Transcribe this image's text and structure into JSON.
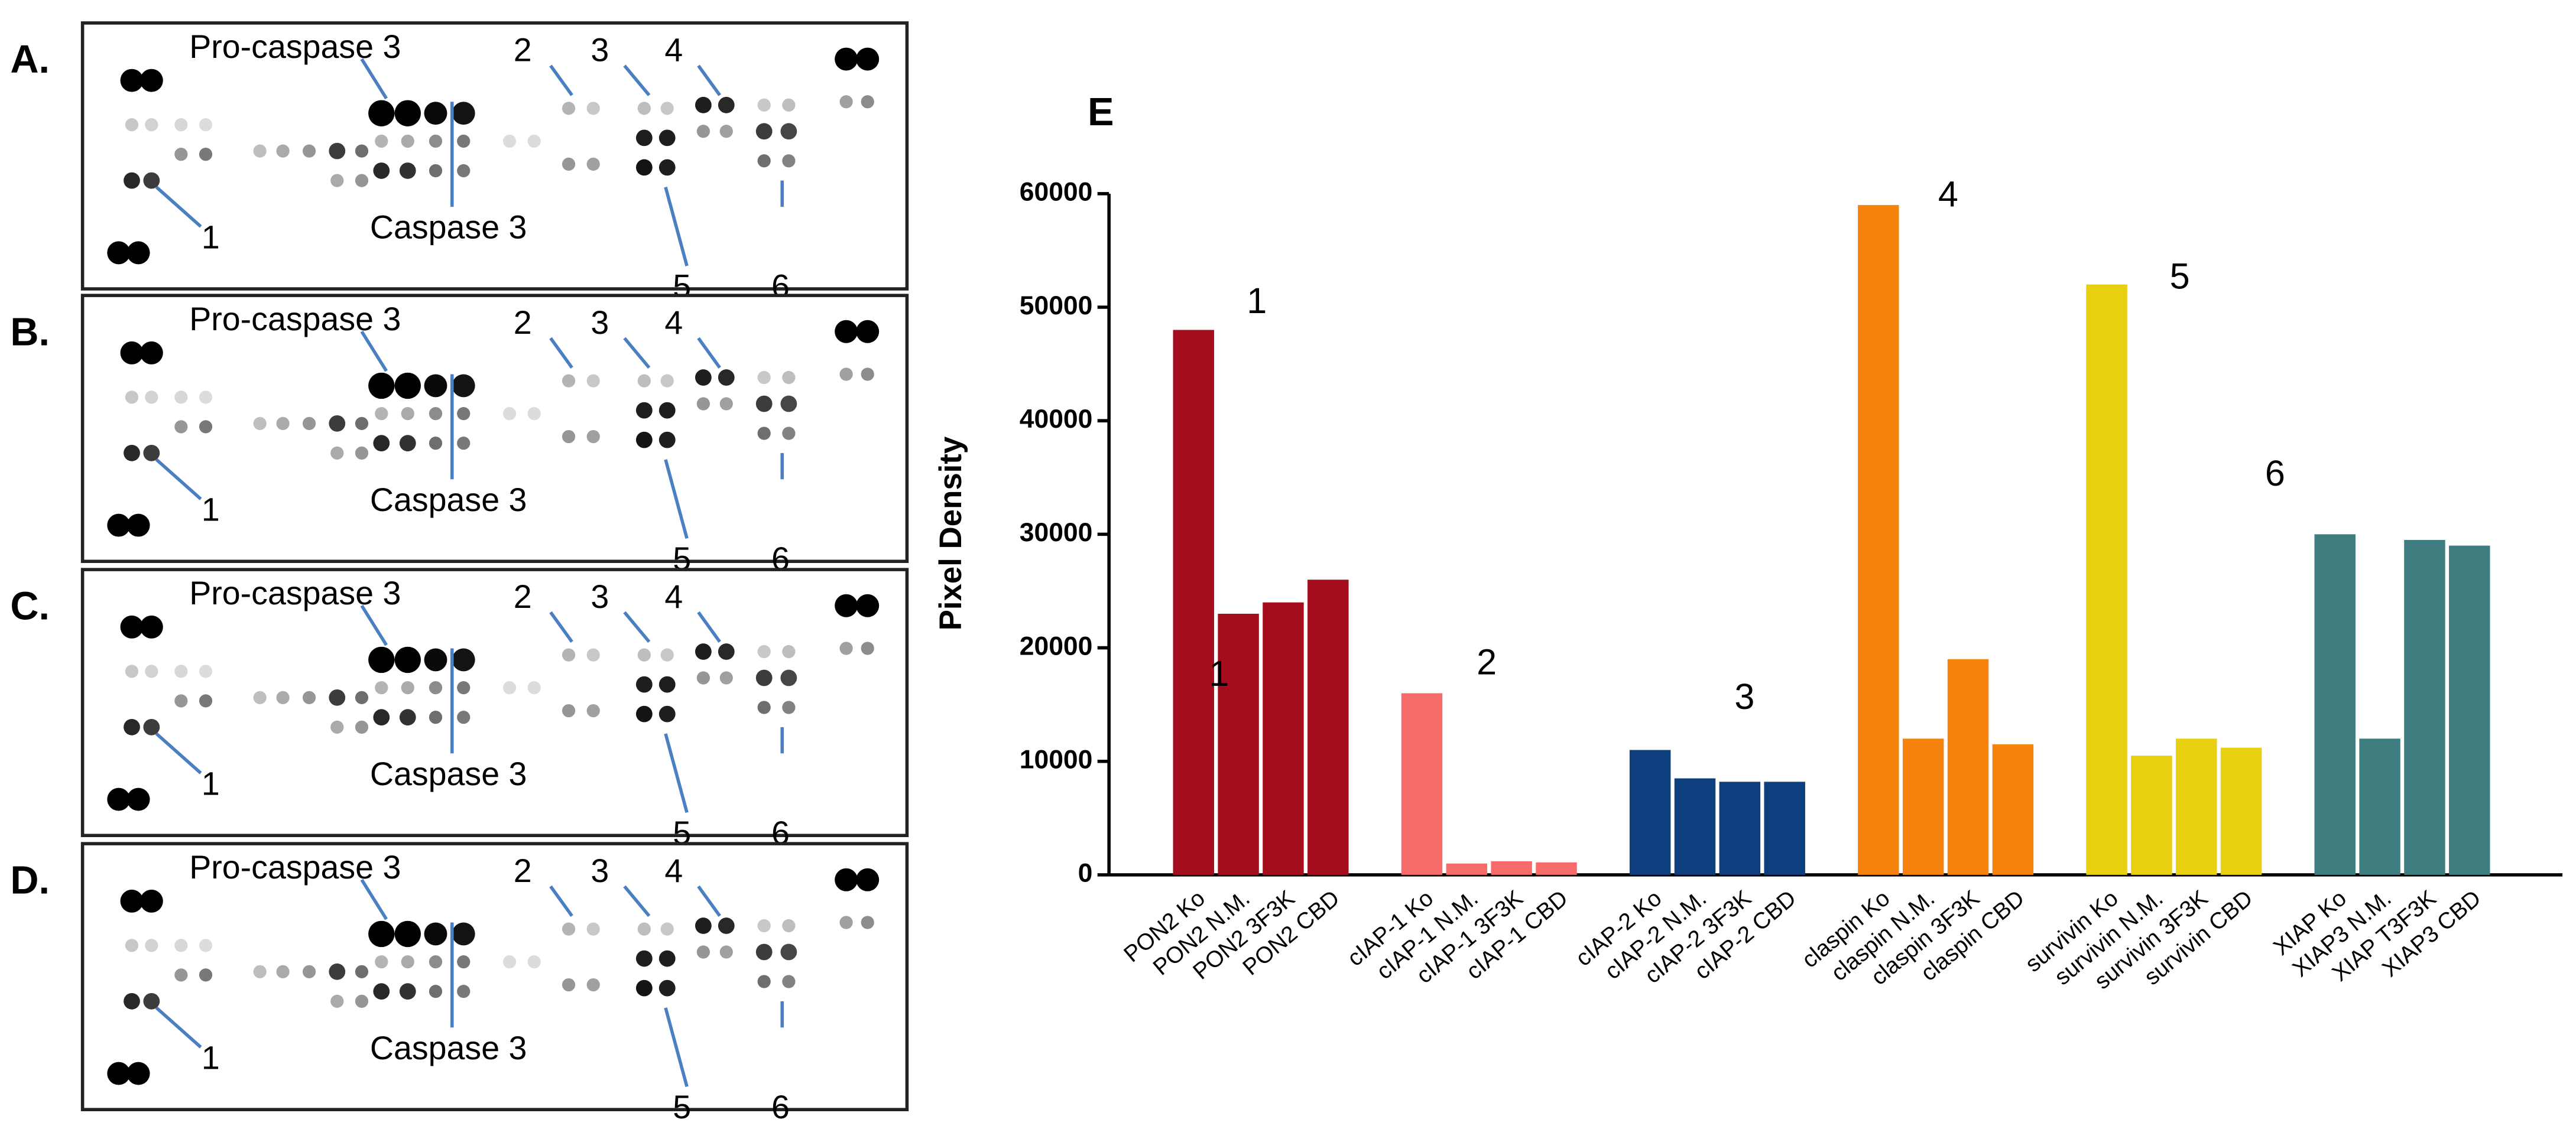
{
  "panels": [
    {
      "label": "A.",
      "annotations": [
        "Pro-caspase 3",
        "2",
        "3",
        "4",
        "1",
        "Caspase 3",
        "5",
        "6"
      ]
    },
    {
      "label": "B.",
      "annotations": [
        "Pro-caspase 3",
        "2",
        "3",
        "4",
        "1",
        "Caspase 3",
        "5",
        "6"
      ]
    },
    {
      "label": "C.",
      "annotations": [
        "Pro-caspase 3",
        "2",
        "3",
        "4",
        "1",
        "Caspase 3",
        "5",
        "6"
      ]
    },
    {
      "label": "D.",
      "annotations": [
        "Pro-caspase 3",
        "2",
        "3",
        "4",
        "1",
        "Caspase 3",
        "5",
        "6"
      ]
    }
  ],
  "chart_data": {
    "type": "bar",
    "panel_label": "E",
    "y_label": "Pixel Density",
    "categories": [
      "PON2 Ko",
      "PON2 N.M.",
      "PON2 3F3K",
      "PON2 CBD",
      "cIAP-1 Ko",
      "cIAP-1 N.M.",
      "cIAP-1 3F3K",
      "cIAP-1 CBD",
      "cIAP-2 Ko",
      "cIAP-2 N.M.",
      "cIAP-2 3F3K",
      "cIAP-2 CBD",
      "claspin Ko",
      "claspin N.M.",
      "claspin 3F3K",
      "claspin CBD",
      "survivin Ko",
      "survivin N.M.",
      "survivin 3F3K",
      "survivin CBD",
      "XIAP Ko",
      "XIAP3 N.M.",
      "XIAP T3F3K",
      "XIAP3 CBD"
    ],
    "values": [
      48000,
      23000,
      24000,
      26000,
      16000,
      1000,
      1200,
      1100,
      11000,
      8500,
      8200,
      8200,
      59000,
      12000,
      19000,
      11500,
      52000,
      10500,
      12000,
      11200,
      30000,
      12000,
      29500,
      29000
    ],
    "colors": [
      "#a50d1e",
      "#a50d1e",
      "#a50d1e",
      "#a50d1e",
      "#f76b6b",
      "#f76b6b",
      "#f76b6b",
      "#f76b6b",
      "#0d3f7e",
      "#0d3f7e",
      "#0d3f7e",
      "#0d3f7e",
      "#f7830f",
      "#f7830f",
      "#f7830f",
      "#f7830f",
      "#e8cf10",
      "#e8cf10",
      "#e8cf10",
      "#e8cf10",
      "#3f7e80",
      "#3f7e80",
      "#3f7e80",
      "#3f7e80"
    ],
    "ylim": [
      0,
      60000
    ],
    "yticks": [
      0,
      10000,
      20000,
      30000,
      40000,
      50000,
      60000
    ],
    "annotations": [
      "1",
      "1",
      "2",
      "3",
      "4",
      "5",
      "6"
    ]
  }
}
